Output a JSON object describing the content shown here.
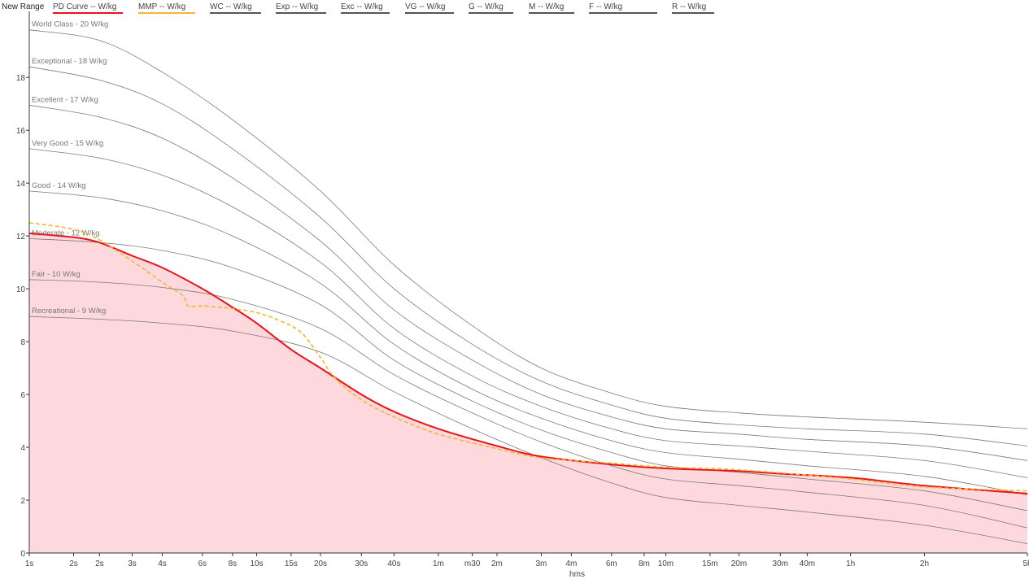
{
  "toolbar": {
    "new_range_label": "New Range"
  },
  "legend": [
    {
      "label": "PD Curve  -- W/kg",
      "color": "#e8141a"
    },
    {
      "label": "MMP  -- W/kg",
      "color": "#f5b731"
    },
    {
      "label": "WC  -- W/kg",
      "color": "#555555"
    },
    {
      "label": "Exp  -- W/kg",
      "color": "#555555"
    },
    {
      "label": "Exc  -- W/kg",
      "color": "#555555"
    },
    {
      "label": "VG  -- W/kg",
      "color": "#555555"
    },
    {
      "label": "G  -- W/kg",
      "color": "#555555"
    },
    {
      "label": "M  -- W/kg",
      "color": "#555555"
    },
    {
      "label": "F  -- W/kg",
      "color": "#555555"
    },
    {
      "label": "R  -- W/kg",
      "color": "#555555"
    }
  ],
  "chart_data": {
    "type": "line",
    "xlabel": "hms",
    "x_scale": "log",
    "x_unit": "seconds",
    "x_ticks": [
      {
        "v": 1,
        "label": "1s"
      },
      {
        "v": 2,
        "label": "2s"
      },
      {
        "v": 3,
        "label": "2s"
      },
      {
        "v": 5,
        "label": "3s"
      },
      {
        "v": 8,
        "label": "4s"
      },
      {
        "v": 15,
        "label": "6s"
      },
      {
        "v": 24,
        "label": "8s"
      },
      {
        "v": 35,
        "label": "10s"
      },
      {
        "v": 60,
        "label": "15s"
      },
      {
        "v": 95,
        "label": "20s"
      },
      {
        "v": 180,
        "label": "30s"
      },
      {
        "v": 300,
        "label": "40s"
      },
      {
        "v": 600,
        "label": "1m"
      },
      {
        "v": 1020,
        "label": "m30"
      },
      {
        "v": 1500,
        "label": "2m"
      },
      {
        "v": 3000,
        "label": "3m"
      },
      {
        "v": 4800,
        "label": "4m"
      },
      {
        "v": 9000,
        "label": "6m"
      },
      {
        "v": 15000,
        "label": "8m"
      },
      {
        "v": 21000,
        "label": "10m"
      },
      {
        "v": 42000,
        "label": "15m"
      },
      {
        "v": 66000,
        "label": "20m"
      },
      {
        "v": 126000,
        "label": "30m"
      },
      {
        "v": 192000,
        "label": "40m"
      },
      {
        "v": 378000,
        "label": "1h"
      },
      {
        "v": 1200000,
        "label": "2h"
      },
      {
        "v": 6000000,
        "label": "5h"
      }
    ],
    "xlim": [
      1,
      6000000
    ],
    "ylim": [
      0,
      20.5
    ],
    "y_ticks": [
      0,
      2,
      4,
      6,
      8,
      10,
      12,
      14,
      16,
      18
    ],
    "grid": false,
    "categories": [
      {
        "label": "World Class - 20 W/kg",
        "values": [
          19.8,
          19.4,
          18.2,
          16.4,
          13.7,
          10.9,
          8.6,
          7.0,
          6.05,
          5.55,
          5.3,
          5.15,
          4.95,
          4.7
        ]
      },
      {
        "label": "Exceptional - 18 W/kg",
        "values": [
          18.4,
          17.9,
          17.0,
          15.3,
          12.7,
          10.0,
          7.9,
          6.5,
          5.6,
          5.1,
          4.85,
          4.7,
          4.5,
          4.05
        ]
      },
      {
        "label": "Excellent - 17 W/kg",
        "values": [
          16.95,
          16.5,
          15.7,
          14.2,
          11.8,
          9.2,
          7.3,
          6.0,
          5.15,
          4.7,
          4.5,
          4.3,
          4.05,
          3.5
        ]
      },
      {
        "label": "Very Good - 15 W/kg",
        "values": [
          15.3,
          14.95,
          14.3,
          13.1,
          11.0,
          8.5,
          6.7,
          5.55,
          4.7,
          4.25,
          4.05,
          3.85,
          3.5,
          2.85
        ]
      },
      {
        "label": "Good - 14 W/kg",
        "values": [
          13.7,
          13.45,
          12.95,
          12.0,
          10.2,
          7.9,
          6.2,
          5.1,
          4.25,
          3.8,
          3.55,
          3.3,
          2.9,
          2.2
        ]
      },
      {
        "label": "Moderate - 12 W/kg",
        "values": [
          11.9,
          11.75,
          11.45,
          10.8,
          9.4,
          7.3,
          5.75,
          4.65,
          3.8,
          3.3,
          3.05,
          2.8,
          2.35,
          1.6
        ]
      },
      {
        "label": "Fair - 10 W/kg",
        "values": [
          10.35,
          10.25,
          10.05,
          9.6,
          8.5,
          6.75,
          5.3,
          4.2,
          3.3,
          2.8,
          2.55,
          2.3,
          1.8,
          0.95
        ]
      },
      {
        "label": "Recreational - 9 W/kg",
        "values": [
          8.95,
          8.85,
          8.7,
          8.4,
          7.6,
          6.1,
          4.7,
          3.6,
          2.65,
          2.1,
          1.8,
          1.55,
          1.05,
          0.35
        ]
      }
    ],
    "category_x": [
      1,
      3,
      8,
      24,
      95,
      300,
      1020,
      3000,
      9000,
      21000,
      66000,
      192000,
      1200000,
      6000000
    ],
    "series": [
      {
        "name": "PD Curve",
        "color": "#e8141a",
        "fill": "#fdd8dd",
        "x": [
          1,
          2,
          3,
          5,
          8,
          15,
          24,
          35,
          60,
          95,
          180,
          300,
          600,
          1500,
          3000,
          9000,
          21000,
          66000,
          126000,
          378000,
          1200000,
          6000000
        ],
        "y": [
          12.1,
          11.95,
          11.75,
          11.25,
          10.8,
          10.0,
          9.3,
          8.7,
          7.7,
          7.0,
          6.0,
          5.35,
          4.7,
          4.05,
          3.65,
          3.35,
          3.2,
          3.1,
          3.0,
          2.85,
          2.55,
          2.25
        ]
      },
      {
        "name": "MMP",
        "color": "#f5b731",
        "x": [
          1,
          2,
          3,
          5,
          8,
          11,
          12,
          15,
          20,
          24,
          35,
          50,
          70,
          95,
          120,
          180,
          300,
          600,
          1500,
          3000,
          9000,
          21000,
          66000,
          378000,
          1200000,
          6000000
        ],
        "y": [
          12.5,
          12.25,
          11.85,
          11.05,
          10.25,
          9.75,
          9.35,
          9.35,
          9.3,
          9.25,
          9.1,
          8.8,
          8.35,
          7.4,
          6.6,
          5.8,
          5.15,
          4.5,
          3.95,
          3.6,
          3.4,
          3.25,
          3.15,
          2.8,
          2.5,
          2.35
        ]
      }
    ]
  }
}
